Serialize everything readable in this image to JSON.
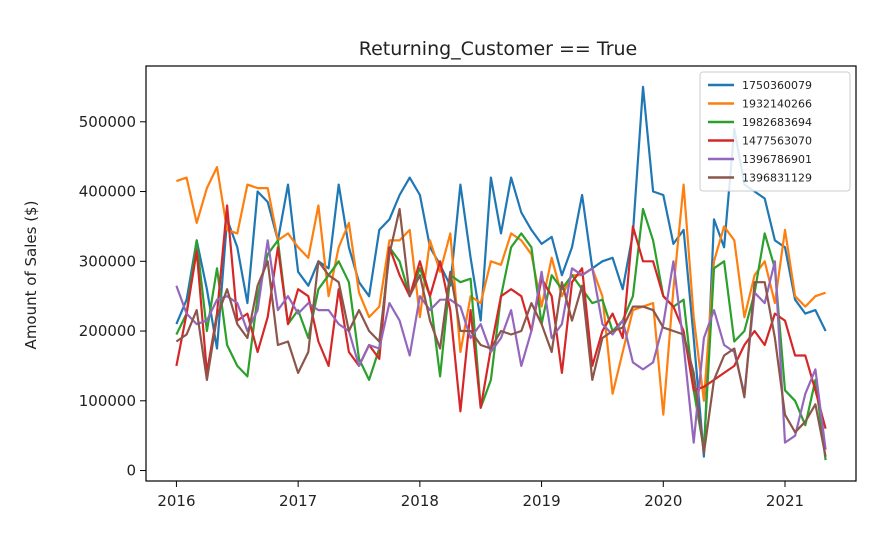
{
  "chart_data": {
    "type": "line",
    "title": "Returning_Customer == True",
    "xlabel": "",
    "ylabel": "Amount of Sales ($)",
    "xlim": [
      "2015-10",
      "2021-08"
    ],
    "ylim": [
      -15000,
      580000
    ],
    "x_ticks": [
      "2016",
      "2017",
      "2018",
      "2019",
      "2020",
      "2021"
    ],
    "y_ticks": [
      "0",
      "100000",
      "200000",
      "300000",
      "400000",
      "500000"
    ],
    "y_tick_values": [
      0,
      100000,
      200000,
      300000,
      400000,
      500000
    ],
    "legend_position": "top-right",
    "grid": false,
    "x": [
      "2016-01",
      "2016-02",
      "2016-03",
      "2016-04",
      "2016-05",
      "2016-06",
      "2016-07",
      "2016-08",
      "2016-09",
      "2016-10",
      "2016-11",
      "2016-12",
      "2017-01",
      "2017-02",
      "2017-03",
      "2017-04",
      "2017-05",
      "2017-06",
      "2017-07",
      "2017-08",
      "2017-09",
      "2017-10",
      "2017-11",
      "2017-12",
      "2018-01",
      "2018-02",
      "2018-03",
      "2018-04",
      "2018-05",
      "2018-06",
      "2018-07",
      "2018-08",
      "2018-09",
      "2018-10",
      "2018-11",
      "2018-12",
      "2019-01",
      "2019-02",
      "2019-03",
      "2019-04",
      "2019-05",
      "2019-06",
      "2019-07",
      "2019-08",
      "2019-09",
      "2019-10",
      "2019-11",
      "2019-12",
      "2020-01",
      "2020-02",
      "2020-03",
      "2020-04",
      "2020-05",
      "2020-06",
      "2020-07",
      "2020-08",
      "2020-09",
      "2020-10",
      "2020-11",
      "2020-12",
      "2021-01",
      "2021-02",
      "2021-03",
      "2021-04",
      "2021-05"
    ],
    "series": [
      {
        "name": "1750360079",
        "color": "#1f77b4",
        "values": [
          210000,
          245000,
          330000,
          260000,
          175000,
          360000,
          320000,
          240000,
          400000,
          385000,
          330000,
          410000,
          285000,
          265000,
          300000,
          290000,
          410000,
          320000,
          270000,
          250000,
          345000,
          360000,
          395000,
          420000,
          395000,
          320000,
          295000,
          265000,
          410000,
          305000,
          215000,
          420000,
          340000,
          420000,
          370000,
          345000,
          325000,
          335000,
          280000,
          320000,
          395000,
          290000,
          300000,
          305000,
          260000,
          340000,
          550000,
          400000,
          395000,
          325000,
          345000,
          190000,
          20000,
          360000,
          320000,
          490000,
          410000,
          400000,
          390000,
          330000,
          320000,
          245000,
          225000,
          230000,
          200000
        ]
      },
      {
        "name": "1932140266",
        "color": "#ff7f0e",
        "values": [
          415000,
          420000,
          355000,
          405000,
          435000,
          345000,
          340000,
          410000,
          405000,
          405000,
          330000,
          340000,
          320000,
          305000,
          380000,
          250000,
          320000,
          355000,
          255000,
          220000,
          235000,
          330000,
          330000,
          345000,
          220000,
          330000,
          285000,
          340000,
          170000,
          250000,
          240000,
          300000,
          295000,
          340000,
          330000,
          310000,
          235000,
          305000,
          250000,
          280000,
          280000,
          290000,
          250000,
          110000,
          170000,
          230000,
          235000,
          240000,
          80000,
          260000,
          410000,
          220000,
          100000,
          300000,
          350000,
          330000,
          220000,
          280000,
          300000,
          240000,
          345000,
          250000,
          235000,
          250000,
          255000
        ]
      },
      {
        "name": "1982683694",
        "color": "#2ca02c",
        "values": [
          195000,
          225000,
          330000,
          200000,
          290000,
          180000,
          150000,
          135000,
          250000,
          310000,
          330000,
          210000,
          230000,
          190000,
          260000,
          280000,
          300000,
          270000,
          160000,
          130000,
          175000,
          320000,
          300000,
          250000,
          290000,
          250000,
          135000,
          280000,
          270000,
          275000,
          90000,
          130000,
          250000,
          320000,
          340000,
          320000,
          210000,
          280000,
          260000,
          280000,
          260000,
          240000,
          245000,
          200000,
          215000,
          250000,
          375000,
          330000,
          250000,
          235000,
          245000,
          115000,
          30000,
          290000,
          300000,
          185000,
          200000,
          255000,
          340000,
          290000,
          115000,
          100000,
          65000,
          130000,
          15000
        ]
      },
      {
        "name": "1477563070",
        "color": "#d62728",
        "values": [
          150000,
          225000,
          315000,
          140000,
          225000,
          380000,
          215000,
          225000,
          170000,
          220000,
          320000,
          210000,
          260000,
          250000,
          185000,
          150000,
          260000,
          170000,
          150000,
          180000,
          160000,
          320000,
          280000,
          250000,
          300000,
          250000,
          300000,
          230000,
          85000,
          230000,
          90000,
          175000,
          250000,
          260000,
          250000,
          200000,
          275000,
          250000,
          140000,
          270000,
          290000,
          150000,
          200000,
          225000,
          190000,
          350000,
          300000,
          300000,
          250000,
          235000,
          200000,
          115000,
          120000,
          130000,
          140000,
          150000,
          180000,
          200000,
          180000,
          225000,
          215000,
          165000,
          165000,
          115000,
          60000
        ]
      },
      {
        "name": "1396786901",
        "color": "#9467bd",
        "values": [
          265000,
          225000,
          210000,
          215000,
          245000,
          250000,
          240000,
          200000,
          230000,
          330000,
          230000,
          250000,
          225000,
          240000,
          230000,
          230000,
          210000,
          200000,
          150000,
          180000,
          175000,
          240000,
          215000,
          165000,
          250000,
          230000,
          245000,
          245000,
          235000,
          190000,
          210000,
          170000,
          190000,
          230000,
          150000,
          200000,
          285000,
          190000,
          210000,
          290000,
          280000,
          290000,
          210000,
          195000,
          215000,
          155000,
          145000,
          155000,
          210000,
          300000,
          180000,
          40000,
          190000,
          230000,
          180000,
          170000,
          110000,
          255000,
          240000,
          300000,
          40000,
          50000,
          110000,
          145000,
          30000
        ]
      },
      {
        "name": "1396831129",
        "color": "#8c564b",
        "values": [
          185000,
          195000,
          230000,
          130000,
          220000,
          260000,
          210000,
          190000,
          265000,
          300000,
          180000,
          185000,
          140000,
          170000,
          300000,
          280000,
          270000,
          200000,
          230000,
          200000,
          185000,
          310000,
          375000,
          250000,
          280000,
          215000,
          175000,
          285000,
          200000,
          200000,
          180000,
          175000,
          200000,
          195000,
          200000,
          240000,
          210000,
          170000,
          270000,
          215000,
          265000,
          130000,
          190000,
          200000,
          205000,
          235000,
          235000,
          230000,
          205000,
          200000,
          195000,
          140000,
          25000,
          130000,
          165000,
          175000,
          105000,
          270000,
          270000,
          190000,
          80000,
          55000,
          70000,
          95000,
          20000
        ]
      }
    ]
  }
}
